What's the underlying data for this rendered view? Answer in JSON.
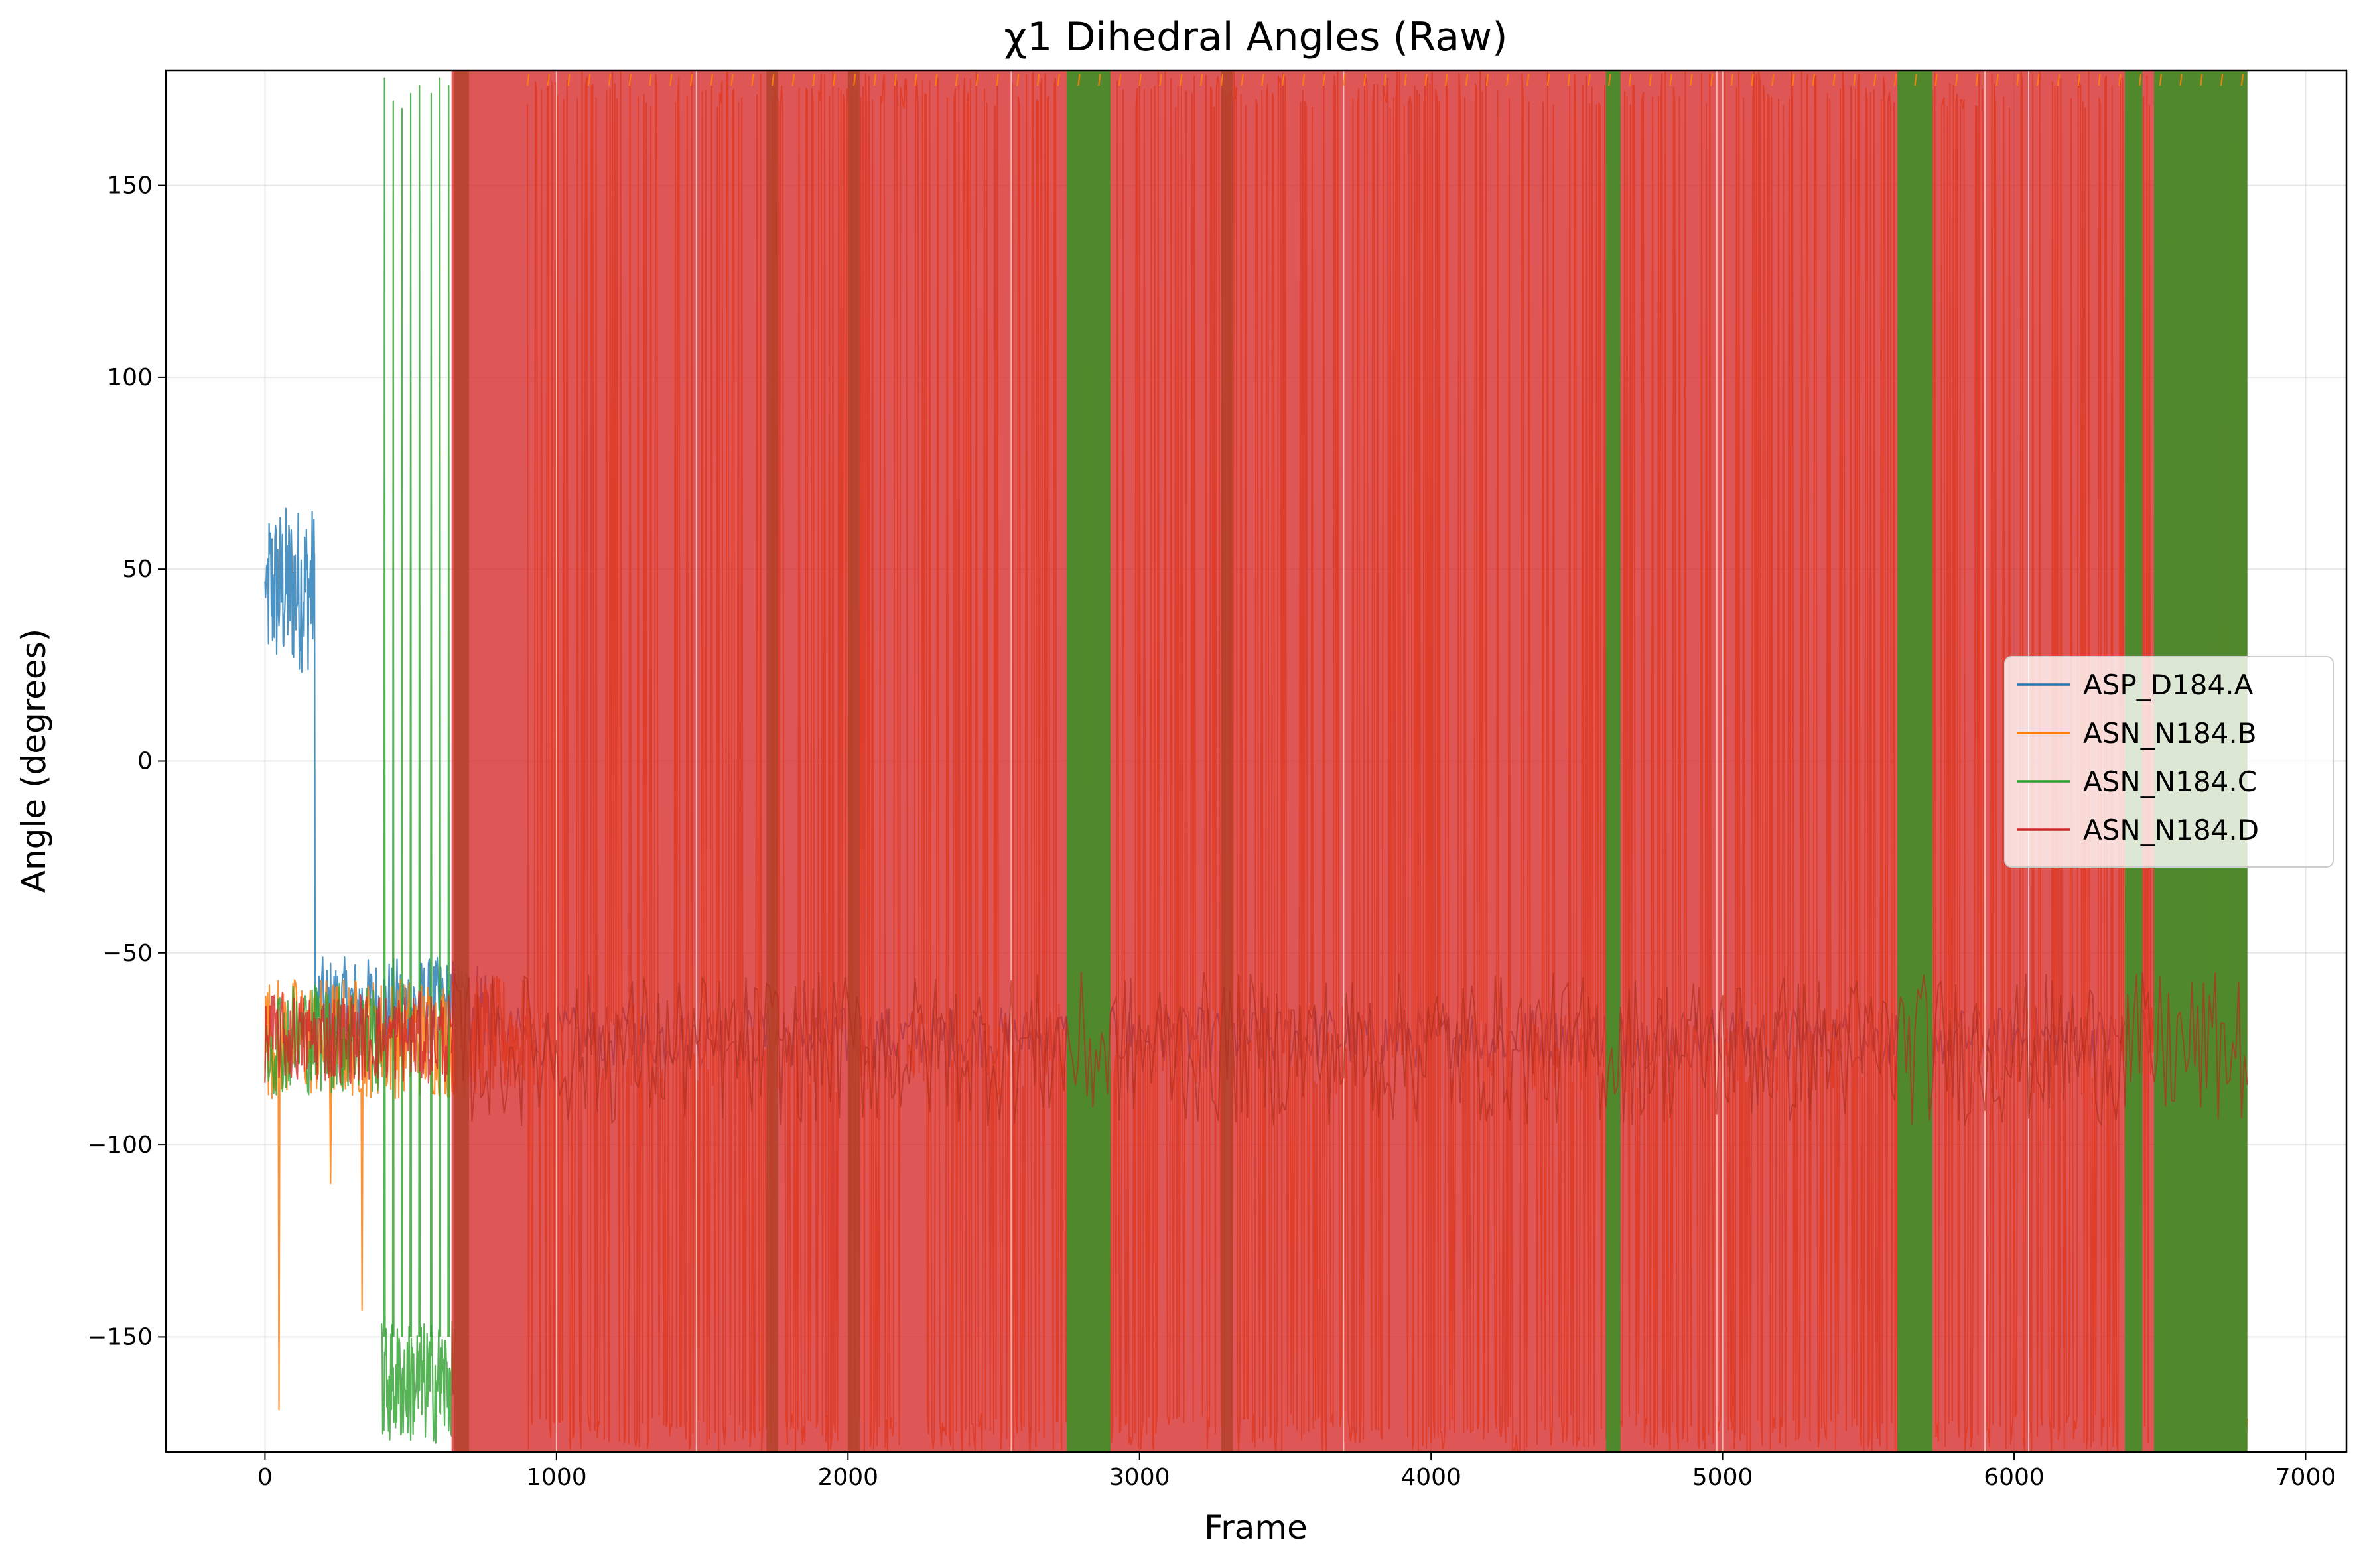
{
  "chart_data": {
    "type": "line",
    "title": "χ1 Dihedral Angles (Raw)",
    "xlabel": "Frame",
    "ylabel": "Angle (degrees)",
    "xlim": [
      -340,
      7140
    ],
    "ylim": [
      -180,
      180
    ],
    "xticks": [
      0,
      1000,
      2000,
      3000,
      4000,
      5000,
      6000,
      7000
    ],
    "yticks": [
      -150,
      -100,
      -50,
      0,
      50,
      100,
      150
    ],
    "ytick_labels": [
      "−150",
      "−100",
      "−50",
      "0",
      "50",
      "100",
      "150"
    ],
    "grid": true,
    "legend_position": "center-right",
    "series": [
      {
        "name": "ASP_D184.A",
        "color": "#1f77b4",
        "description": "Near +45 (range ~20 to 72) for frames 0-170, then around -65 (range -50 to -90) afterwards",
        "x": [
          0,
          20,
          40,
          60,
          80,
          100,
          120,
          140,
          160,
          170,
          200,
          300,
          400,
          500,
          600,
          700,
          6800
        ],
        "y": [
          45,
          38,
          50,
          42,
          55,
          40,
          58,
          45,
          50,
          -60,
          -58,
          -62,
          -65,
          -66,
          -68,
          -70,
          -72
        ]
      },
      {
        "name": "ASN_N184.B",
        "color": "#ff7f0e",
        "description": "Around -70 (range -50 to -100) from frame 0 to ~900 with spikes to -169 near frame 50 and -143 near frame 330, then rapid switching between about -180 and +180 with dense band near -75 until frame 6800",
        "x": [
          0,
          50,
          100,
          200,
          330,
          400,
          500,
          700,
          900,
          6800
        ],
        "y": [
          -70,
          -169,
          -72,
          -75,
          -143,
          -70,
          -72,
          -75,
          -75,
          -75
        ]
      },
      {
        "name": "ASN_N184.C",
        "color": "#2ca02c",
        "description": "Around -70 for frames 0-400, switches to about -150..-180 from ~400, rapid transitions between -180 and +180 through frame 6800 with wide green blocks near 2750-2900, 4600-4650, 5600-5700, 6400-6800",
        "x": [
          0,
          200,
          400,
          420,
          600,
          800,
          2800,
          4620,
          5650,
          6800
        ],
        "y": [
          -70,
          -72,
          -70,
          -150,
          -155,
          -160,
          -170,
          -170,
          -165,
          -160
        ]
      },
      {
        "name": "ASN_N184.D",
        "color": "#d62728",
        "description": "Around -70 for frames 0-640, then dense rapid switching across the full -180 to +180 range with a dense band near -75 until frame 6800",
        "x": [
          0,
          300,
          640,
          700,
          1000,
          2000,
          3000,
          4000,
          5000,
          6000,
          6800
        ],
        "y": [
          -70,
          -72,
          -75,
          -75,
          -76,
          -76,
          -76,
          -76,
          -76,
          -76,
          -76
        ]
      }
    ]
  }
}
